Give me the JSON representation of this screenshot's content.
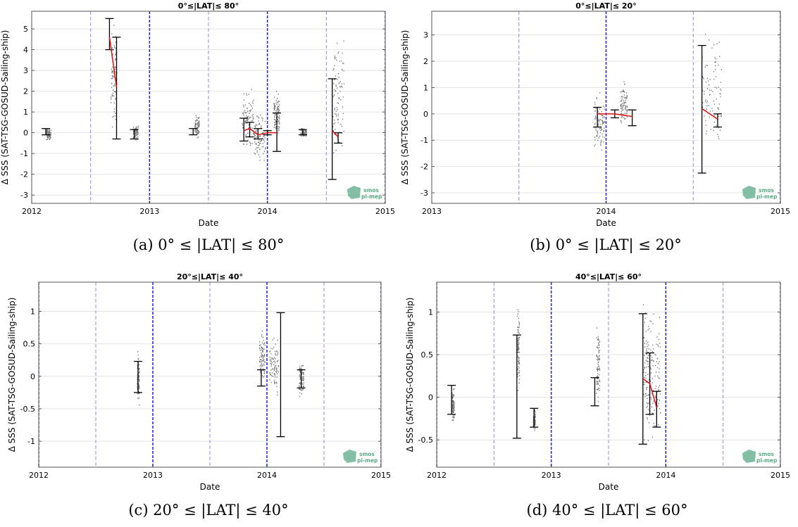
{
  "chart_data": [
    {
      "type": "errorbar",
      "title": "0°≤|LAT|≤ 80°",
      "xlabel": "Date",
      "ylabel": "Δ SSS (SAT-TSG-GOSUD-Sailing-ship)",
      "caption": "(a) 0° ≤ |LAT| ≤ 80°",
      "xlim": [
        2012,
        2015
      ],
      "ylim": [
        -3.4,
        5.85
      ],
      "xticks": [
        "2012",
        "2013",
        "2014",
        "2015"
      ],
      "yticks": [
        -3,
        -2,
        -1,
        0,
        1,
        2,
        3,
        4,
        5
      ],
      "year_lines": [
        2013,
        2014,
        2015
      ],
      "half_year_lines": [
        2012.5,
        2013.5,
        2014.5
      ],
      "mean_line_x": [
        2012.66,
        2012.72
      ],
      "mean_line_y": [
        4.6,
        2.2
      ],
      "mean_line_2_x": [
        2013.8,
        2013.85,
        2013.92,
        2014.0,
        2014.08
      ],
      "mean_line_2_y": [
        0.1,
        0.2,
        -0.1,
        0.0,
        0.0
      ],
      "mean_line_3_x": [
        2014.55,
        2014.6
      ],
      "mean_line_3_y": [
        0.1,
        -0.2
      ],
      "error_bars": [
        {
          "x": 2012.12,
          "low": -0.1,
          "high": 0.2
        },
        {
          "x": 2012.66,
          "low": 4.0,
          "high": 5.5
        },
        {
          "x": 2012.72,
          "low": -0.3,
          "high": 4.6
        },
        {
          "x": 2012.87,
          "low": -0.3,
          "high": 0.15
        },
        {
          "x": 2013.37,
          "low": -0.1,
          "high": 0.2
        },
        {
          "x": 2013.8,
          "low": -0.4,
          "high": 0.7
        },
        {
          "x": 2013.85,
          "low": -0.2,
          "high": 0.5
        },
        {
          "x": 2013.92,
          "low": -0.3,
          "high": 0.2
        },
        {
          "x": 2014.0,
          "low": -0.1,
          "high": 0.1
        },
        {
          "x": 2014.08,
          "low": -0.9,
          "high": 0.95
        },
        {
          "x": 2014.3,
          "low": -0.1,
          "high": 0.15
        },
        {
          "x": 2014.55,
          "low": -2.25,
          "high": 2.6
        },
        {
          "x": 2014.6,
          "low": -0.5,
          "high": 0.0
        }
      ],
      "scatter_clusters": [
        {
          "x0": 2012.12,
          "x1": 2012.16,
          "low": -0.4,
          "high": 0.3
        },
        {
          "x0": 2012.67,
          "x1": 2012.72,
          "low": -0.3,
          "high": 5.8
        },
        {
          "x0": 2012.86,
          "x1": 2012.9,
          "low": -0.4,
          "high": 0.5
        },
        {
          "x0": 2013.38,
          "x1": 2013.42,
          "low": -0.3,
          "high": 1.0
        },
        {
          "x0": 2013.78,
          "x1": 2013.88,
          "low": -1.0,
          "high": 2.5
        },
        {
          "x0": 2013.88,
          "x1": 2013.98,
          "low": -1.7,
          "high": 1.2
        },
        {
          "x0": 2014.05,
          "x1": 2014.1,
          "low": -0.5,
          "high": 2.2
        },
        {
          "x0": 2014.28,
          "x1": 2014.33,
          "low": -0.3,
          "high": 0.3
        },
        {
          "x0": 2014.55,
          "x1": 2014.65,
          "low": -2.5,
          "high": 5.8
        }
      ]
    },
    {
      "type": "errorbar",
      "title": "0°≤|LAT|≤ 20°",
      "xlabel": "Date",
      "ylabel": "Δ SSS (SAT-TSG-GOSUD-Sailing-ship)",
      "caption": "(b) 0° ≤ |LAT| ≤ 20°",
      "xlim": [
        2013,
        2015
      ],
      "ylim": [
        -3.4,
        3.9
      ],
      "xticks": [
        "2013",
        "2014",
        "2015"
      ],
      "yticks": [
        -3,
        -2,
        -1,
        0,
        1,
        2,
        3
      ],
      "year_lines": [
        2014,
        2015
      ],
      "half_year_lines": [
        2013.5,
        2014.5
      ],
      "mean_line_x": [
        2013.95,
        2014.05,
        2014.15
      ],
      "mean_line_y": [
        0.0,
        0.0,
        -0.1
      ],
      "mean_line_2_x": [
        2014.55,
        2014.64
      ],
      "mean_line_2_y": [
        0.2,
        -0.2
      ],
      "error_bars": [
        {
          "x": 2013.95,
          "low": -0.5,
          "high": 0.25
        },
        {
          "x": 2014.05,
          "low": -0.15,
          "high": 0.15
        },
        {
          "x": 2014.15,
          "low": -0.45,
          "high": 0.15
        },
        {
          "x": 2014.55,
          "low": -2.25,
          "high": 2.6
        },
        {
          "x": 2014.64,
          "low": -0.5,
          "high": 0.0
        }
      ],
      "scatter_clusters": [
        {
          "x0": 2013.93,
          "x1": 2013.99,
          "low": -1.8,
          "high": 1.0
        },
        {
          "x0": 2014.08,
          "x1": 2014.12,
          "low": -0.6,
          "high": 1.4
        },
        {
          "x0": 2014.55,
          "x1": 2014.66,
          "low": -2.0,
          "high": 3.9
        }
      ]
    },
    {
      "type": "errorbar",
      "title": "20°≤|LAT|≤ 40°",
      "xlabel": "Date",
      "ylabel": "Δ SSS (SAT-TSG-GOSUD-Sailing-ship)",
      "caption": "(c) 20° ≤ |LAT| ≤ 40°",
      "xlim": [
        2012,
        2015
      ],
      "ylim": [
        -1.4,
        1.45
      ],
      "xticks": [
        "2012",
        "2013",
        "2014",
        "2015"
      ],
      "yticks": [
        -1,
        -0.5,
        0,
        0.5,
        1
      ],
      "year_lines": [
        2012,
        2013,
        2014,
        2015
      ],
      "half_year_lines": [
        2012.5,
        2013.5,
        2014.5
      ],
      "error_bars": [
        {
          "x": 2012.87,
          "low": -0.25,
          "high": 0.23
        },
        {
          "x": 2013.95,
          "low": -0.15,
          "high": 0.1
        },
        {
          "x": 2014.12,
          "low": -0.93,
          "high": 0.98
        },
        {
          "x": 2014.3,
          "low": -0.18,
          "high": 0.1
        }
      ],
      "scatter_clusters": [
        {
          "x0": 2012.86,
          "x1": 2012.88,
          "low": -0.6,
          "high": 0.55
        },
        {
          "x0": 2013.93,
          "x1": 2013.98,
          "low": -0.25,
          "high": 0.85
        },
        {
          "x0": 2014.02,
          "x1": 2014.1,
          "low": -0.35,
          "high": 0.7
        },
        {
          "x0": 2014.28,
          "x1": 2014.32,
          "low": -0.4,
          "high": 0.35
        }
      ]
    },
    {
      "type": "errorbar",
      "title": "40°≤|LAT|≤ 60°",
      "xlabel": "Date",
      "ylabel": "Δ SSS (SAT-TSG-GOSUD-Sailing-ship)",
      "caption": "(d) 40° ≤ |LAT| ≤ 60°",
      "xlim": [
        2012,
        2015
      ],
      "ylim": [
        -0.82,
        1.35
      ],
      "xticks": [
        "2012",
        "2013",
        "2014",
        "2015"
      ],
      "yticks": [
        -0.5,
        0,
        0.5,
        1
      ],
      "year_lines": [
        2012,
        2013,
        2014,
        2015
      ],
      "half_year_lines": [
        2012.5,
        2013.5,
        2014.5
      ],
      "mean_line_x": [
        2013.8,
        2013.86,
        2013.92
      ],
      "mean_line_y": [
        0.22,
        0.16,
        -0.12
      ],
      "error_bars": [
        {
          "x": 2012.13,
          "low": -0.2,
          "high": 0.14
        },
        {
          "x": 2012.7,
          "low": -0.48,
          "high": 0.73
        },
        {
          "x": 2012.85,
          "low": -0.35,
          "high": -0.13
        },
        {
          "x": 2013.38,
          "low": -0.1,
          "high": 0.23
        },
        {
          "x": 2013.8,
          "low": -0.55,
          "high": 0.98
        },
        {
          "x": 2013.86,
          "low": -0.2,
          "high": 0.52
        },
        {
          "x": 2013.92,
          "low": -0.35,
          "high": 0.07
        }
      ],
      "scatter_clusters": [
        {
          "x0": 2012.13,
          "x1": 2012.15,
          "low": -0.33,
          "high": 0.15
        },
        {
          "x0": 2012.7,
          "x1": 2012.72,
          "low": -0.1,
          "high": 1.2
        },
        {
          "x0": 2012.84,
          "x1": 2012.86,
          "low": -0.4,
          "high": -0.1
        },
        {
          "x0": 2013.39,
          "x1": 2013.42,
          "low": -0.18,
          "high": 1.0
        },
        {
          "x0": 2013.8,
          "x1": 2013.86,
          "low": -0.8,
          "high": 1.3
        },
        {
          "x0": 2013.86,
          "x1": 2013.95,
          "low": -0.65,
          "high": 1.1
        }
      ]
    }
  ],
  "logo": {
    "line1": "smos",
    "line2": "pi-mep"
  },
  "colors": {
    "year_line": "#2b2bd6",
    "half_year_line": "#8a8aee",
    "mean_line": "#e01010",
    "errorbar": "#000000",
    "scatter": "#7a7a7a",
    "grid": "#e4e4e4",
    "logo": "#5aaa86"
  }
}
